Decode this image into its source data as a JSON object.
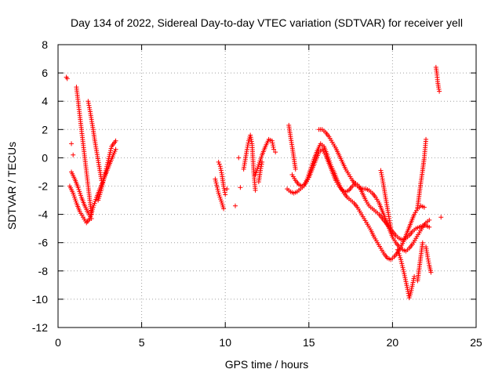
{
  "chart_data": {
    "type": "scatter",
    "title": "Day 134 of 2022, Sidereal Day-to-day VTEC variation (SDTVAR) for receiver yell",
    "xlabel": "GPS time / hours",
    "ylabel": "SDTVAR / TECUs",
    "xlim": [
      0,
      25
    ],
    "ylim": [
      -12,
      8
    ],
    "xticks": [
      0,
      5,
      10,
      15,
      20,
      25
    ],
    "yticks": [
      -12,
      -10,
      -8,
      -6,
      -4,
      -2,
      0,
      2,
      4,
      6,
      8
    ],
    "grid": true,
    "marker": "+",
    "series": [
      {
        "name": "SDTVAR",
        "color": "#ff0000",
        "segments": [
          {
            "x": [
              0.5,
              0.55
            ],
            "y": [
              5.7,
              5.6
            ]
          },
          {
            "x": [
              0.7,
              0.9,
              1.1,
              1.3,
              1.5,
              1.7,
              1.9,
              2.1,
              2.3,
              2.5,
              2.7,
              2.9,
              3.1,
              3.3,
              3.45
            ],
            "y": [
              -2.0,
              -2.5,
              -3.2,
              -3.8,
              -4.2,
              -4.6,
              -4.3,
              -3.5,
              -2.8,
              -2.2,
              -1.6,
              -1.0,
              -0.4,
              0.2,
              0.6
            ]
          },
          {
            "x": [
              0.8,
              1.0,
              1.2,
              1.4,
              1.6,
              1.8,
              2.0
            ],
            "y": [
              -1.0,
              -1.5,
              -2.1,
              -2.8,
              -3.4,
              -3.9,
              -4.3
            ]
          },
          {
            "x": [
              1.1,
              1.2,
              1.3,
              1.4,
              1.5,
              1.6,
              1.7,
              1.8,
              1.9,
              2.0
            ],
            "y": [
              5.0,
              4.0,
              3.0,
              2.0,
              1.0,
              0.0,
              -1.0,
              -2.0,
              -3.0,
              -4.0
            ]
          },
          {
            "x": [
              1.8,
              1.9,
              2.0,
              2.1,
              2.2,
              2.3,
              2.4,
              2.5,
              2.6
            ],
            "y": [
              4.0,
              3.4,
              2.7,
              2.0,
              1.2,
              0.5,
              -0.2,
              -0.9,
              -1.6
            ]
          },
          {
            "x": [
              2.4,
              2.6,
              2.8,
              3.0,
              3.2,
              3.45
            ],
            "y": [
              -3.0,
              -2.2,
              -1.2,
              -0.2,
              0.8,
              1.2
            ]
          },
          {
            "x": [
              0.8
            ],
            "y": [
              1.0
            ]
          },
          {
            "x": [
              0.9
            ],
            "y": [
              0.2
            ]
          },
          {
            "x": [
              9.4,
              9.6,
              9.8,
              9.9
            ],
            "y": [
              -1.5,
              -2.5,
              -3.2,
              -3.6
            ]
          },
          {
            "x": [
              9.6,
              9.7,
              9.8,
              9.9,
              10.0
            ],
            "y": [
              -0.3,
              -0.6,
              -1.2,
              -2.0,
              -2.6
            ]
          },
          {
            "x": [
              10.1
            ],
            "y": [
              -2.2
            ]
          },
          {
            "x": [
              10.6
            ],
            "y": [
              -3.4
            ]
          },
          {
            "x": [
              10.8
            ],
            "y": [
              0.0
            ]
          },
          {
            "x": [
              10.9
            ],
            "y": [
              -2.1
            ]
          },
          {
            "x": [
              11.1,
              11.2,
              11.3,
              11.4,
              11.5,
              11.6,
              11.7,
              11.8
            ],
            "y": [
              -0.8,
              -0.1,
              0.6,
              1.2,
              1.6,
              1.0,
              -1.0,
              -2.3
            ]
          },
          {
            "x": [
              11.8,
              12.0,
              12.2,
              12.4,
              12.6,
              12.8,
              12.9
            ],
            "y": [
              -1.2,
              -0.5,
              0.2,
              0.8,
              1.3,
              1.2,
              0.6
            ]
          },
          {
            "x": [
              12.0,
              12.1,
              12.2
            ],
            "y": [
              -1.7,
              -0.9,
              -0.3
            ]
          },
          {
            "x": [
              13.0
            ],
            "y": [
              0.4
            ]
          },
          {
            "x": [
              13.8,
              13.9,
              14.0,
              14.1,
              14.2
            ],
            "y": [
              2.3,
              1.5,
              0.8,
              0.0,
              -0.8
            ]
          },
          {
            "x": [
              13.7,
              13.9,
              14.1,
              14.3,
              14.5,
              14.7,
              14.9,
              15.1,
              15.3,
              15.5,
              15.7,
              15.9,
              16.1,
              16.3,
              16.5,
              16.7,
              16.9,
              17.1,
              17.3,
              17.5,
              17.7,
              17.9,
              18.1,
              18.3,
              18.5,
              18.7,
              18.9,
              19.1,
              19.3,
              19.5,
              19.7,
              19.9,
              20.1,
              20.3,
              20.5,
              20.7,
              20.9,
              21.1,
              21.3,
              21.5,
              21.7,
              21.9
            ],
            "y": [
              -2.2,
              -2.4,
              -2.5,
              -2.4,
              -2.2,
              -2.0,
              -1.5,
              -0.8,
              -0.1,
              0.5,
              1.0,
              0.8,
              0.2,
              -0.5,
              -1.0,
              -1.6,
              -2.1,
              -2.5,
              -2.8,
              -3.0,
              -3.2,
              -3.5,
              -3.9,
              -4.3,
              -4.7,
              -5.1,
              -5.6,
              -6.0,
              -6.4,
              -6.8,
              -7.1,
              -7.2,
              -7.0,
              -6.7,
              -6.3,
              -5.8,
              -5.2,
              -4.6,
              -4.0,
              -3.6,
              -3.4,
              -3.5
            ]
          },
          {
            "x": [
              14.0,
              14.2,
              14.4,
              14.6,
              14.8,
              15.0,
              15.2,
              15.4,
              15.6,
              15.8,
              16.0,
              16.2,
              16.4,
              16.6,
              16.8,
              17.0,
              17.2,
              17.4,
              17.6,
              17.8,
              18.0,
              18.2,
              18.4,
              18.6,
              18.8,
              19.0,
              19.2,
              19.4,
              19.6,
              19.8,
              20.0,
              20.2,
              20.4,
              20.6,
              20.8,
              21.0,
              21.2,
              21.4,
              21.6,
              21.8,
              22.0,
              22.2
            ],
            "y": [
              -1.2,
              -1.6,
              -1.9,
              -2.0,
              -1.8,
              -1.4,
              -0.8,
              -0.2,
              0.4,
              0.6,
              0.2,
              -0.4,
              -1.0,
              -1.6,
              -2.0,
              -2.3,
              -2.4,
              -2.3,
              -2.0,
              -1.8,
              -2.0,
              -2.5,
              -3.0,
              -3.4,
              -3.6,
              -3.8,
              -4.0,
              -4.3,
              -4.6,
              -4.9,
              -5.2,
              -5.5,
              -5.7,
              -5.8,
              -5.7,
              -5.5,
              -5.2,
              -5.0,
              -4.9,
              -4.8,
              -4.8,
              -4.9
            ]
          },
          {
            "x": [
              15.6,
              15.8,
              16.0,
              16.2,
              16.4,
              16.6,
              16.8,
              17.0,
              17.2,
              17.4,
              17.6,
              17.8,
              18.0,
              18.2,
              18.4,
              18.6,
              18.8,
              19.0,
              19.2,
              19.4,
              19.6,
              19.8,
              20.0,
              20.2,
              20.4,
              20.6,
              20.8,
              21.0,
              21.2,
              21.4,
              21.6,
              21.8,
              22.0,
              22.2
            ],
            "y": [
              2.0,
              2.0,
              1.8,
              1.5,
              1.1,
              0.7,
              0.2,
              -0.3,
              -0.8,
              -1.2,
              -1.6,
              -1.9,
              -2.1,
              -2.2,
              -2.2,
              -2.3,
              -2.5,
              -2.8,
              -3.2,
              -3.8,
              -4.4,
              -5.0,
              -5.6,
              -6.0,
              -6.3,
              -6.5,
              -6.6,
              -6.4,
              -6.1,
              -5.7,
              -5.3,
              -4.9,
              -4.6,
              -4.4
            ]
          },
          {
            "x": [
              19.3,
              19.4,
              19.5,
              19.6,
              19.7,
              19.8,
              19.9
            ],
            "y": [
              -0.9,
              -1.5,
              -2.2,
              -2.9,
              -3.6,
              -4.3,
              -4.9
            ]
          },
          {
            "x": [
              20.3,
              20.5,
              20.7,
              20.9,
              21.0,
              21.1,
              21.3
            ],
            "y": [
              -6.5,
              -7.2,
              -8.2,
              -9.3,
              -9.9,
              -9.5,
              -8.4
            ]
          },
          {
            "x": [
              21.5,
              21.6,
              21.7,
              21.8,
              21.9,
              22.0
            ],
            "y": [
              -3.5,
              -2.6,
              -1.7,
              -0.9,
              0.0,
              1.3
            ]
          },
          {
            "x": [
              21.5,
              21.6,
              21.7,
              21.8
            ],
            "y": [
              -8.7,
              -7.8,
              -6.9,
              -6.0
            ]
          },
          {
            "x": [
              22.0,
              22.1,
              22.2,
              22.3
            ],
            "y": [
              -6.3,
              -7.0,
              -7.6,
              -8.1
            ]
          },
          {
            "x": [
              22.6,
              22.65,
              22.7,
              22.75,
              22.8
            ],
            "y": [
              6.4,
              6.0,
              5.4,
              5.0,
              4.7
            ]
          },
          {
            "x": [
              22.9
            ],
            "y": [
              -4.2
            ]
          }
        ]
      }
    ]
  }
}
